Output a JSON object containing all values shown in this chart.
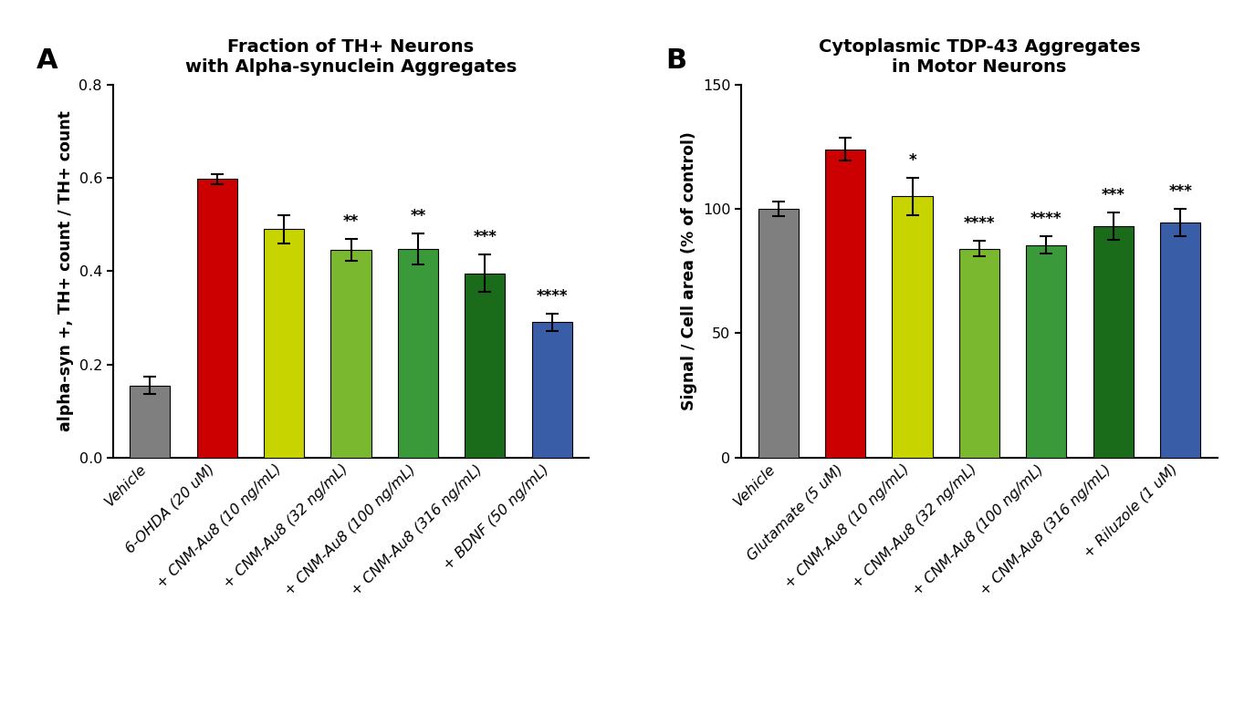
{
  "panel_A": {
    "title": "Fraction of TH+ Neurons\nwith Alpha-synuclein Aggregates",
    "ylabel": "alpha-syn +, TH+ count / TH+ count",
    "categories": [
      "Vehicle",
      "6-OHDA (20 uM)",
      "+ CNM-Au8 (10 ng/mL)",
      "+ CNM-Au8 (32 ng/mL)",
      "+ CNM-Au8 (100 ng/mL)",
      "+ CNM-Au8 (316 ng/mL)",
      "+ BDNF (50 ng/mL)"
    ],
    "values": [
      0.155,
      0.597,
      0.49,
      0.445,
      0.447,
      0.395,
      0.29
    ],
    "errors": [
      0.018,
      0.01,
      0.03,
      0.023,
      0.033,
      0.04,
      0.018
    ],
    "colors": [
      "#7f7f7f",
      "#cc0000",
      "#c8d400",
      "#7ab830",
      "#3a9a3a",
      "#1a6b1a",
      "#3a5da8"
    ],
    "significance": [
      "",
      "",
      "",
      "**",
      "**",
      "***",
      "****"
    ],
    "ylim": [
      0.0,
      0.8
    ],
    "yticks": [
      0.0,
      0.2,
      0.4,
      0.6,
      0.8
    ]
  },
  "panel_B": {
    "title": "Cytoplasmic TDP-43 Aggregates\nin Motor Neurons",
    "ylabel": "Signal / Cell area (% of control)",
    "categories": [
      "Vehicle",
      "Glutamate (5 uM)",
      "+ CNM-Au8 (10 ng/mL)",
      "+ CNM-Au8 (32 ng/mL)",
      "+ CNM-Au8 (100 ng/mL)",
      "+ CNM-Au8 (316 ng/mL)",
      "+ Riluzole (1 uM)"
    ],
    "values": [
      100.0,
      124.0,
      105.0,
      84.0,
      85.5,
      93.0,
      94.5
    ],
    "errors": [
      3.0,
      4.5,
      7.5,
      3.0,
      3.5,
      5.5,
      5.5
    ],
    "colors": [
      "#7f7f7f",
      "#cc0000",
      "#c8d400",
      "#7ab830",
      "#3a9a3a",
      "#1a6b1a",
      "#3a5da8"
    ],
    "significance": [
      "",
      "",
      "*",
      "****",
      "****",
      "***",
      "***"
    ],
    "ylim": [
      0,
      150
    ],
    "yticks": [
      0,
      50,
      100,
      150
    ]
  },
  "panel_labels": [
    "A",
    "B"
  ],
  "background_color": "#ffffff",
  "bar_width": 0.6,
  "tick_fontsize": 11.5,
  "label_fontsize": 12.5,
  "title_fontsize": 14,
  "sig_fontsize": 12
}
